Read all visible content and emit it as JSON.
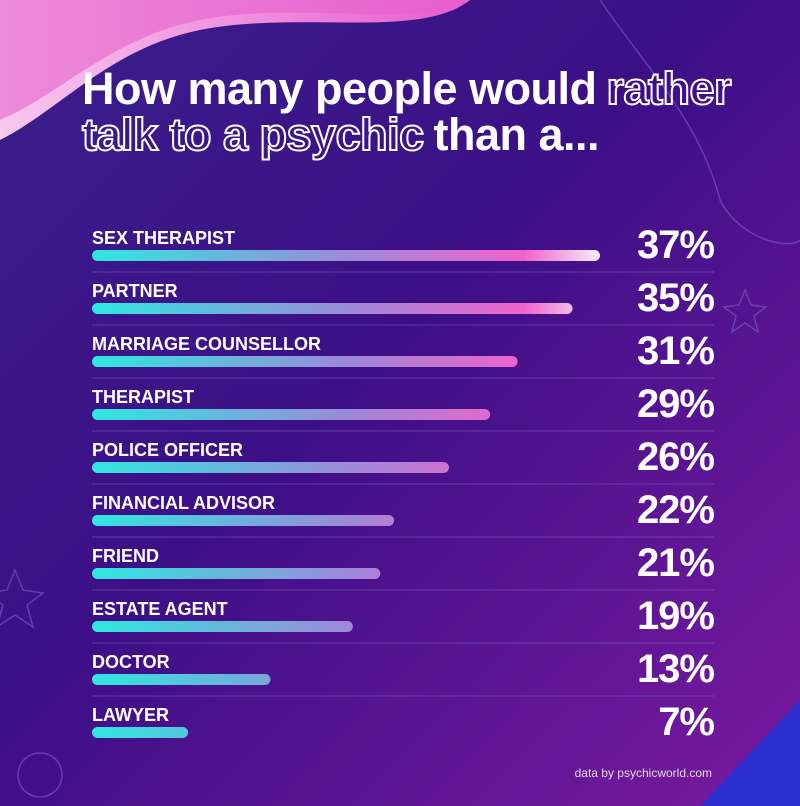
{
  "chart_data": {
    "type": "bar",
    "orientation": "horizontal",
    "title": [
      {
        "text": "How many people would",
        "outline": false
      },
      {
        "text": "rather talk to a psychic",
        "outline": true
      },
      {
        "text": "than a...",
        "outline": false
      }
    ],
    "categories": [
      "SEX THERAPIST",
      "PARTNER",
      "MARRIAGE COUNSELLOR",
      "THERAPIST",
      "POLICE OFFICER",
      "FINANCIAL ADVISOR",
      "FRIEND",
      "ESTATE AGENT",
      "DOCTOR",
      "LAWYER"
    ],
    "values": [
      37,
      35,
      31,
      29,
      26,
      22,
      21,
      19,
      13,
      7
    ],
    "value_labels": [
      "37%",
      "35%",
      "31%",
      "29%",
      "26%",
      "22%",
      "21%",
      "19%",
      "13%",
      "7%"
    ],
    "xlim": [
      0,
      37
    ],
    "colors": [
      "#2ee8e0",
      "#9c8ad8",
      "#f062cc",
      "#f4eef6"
    ],
    "source": "data by psychicworld.com"
  }
}
